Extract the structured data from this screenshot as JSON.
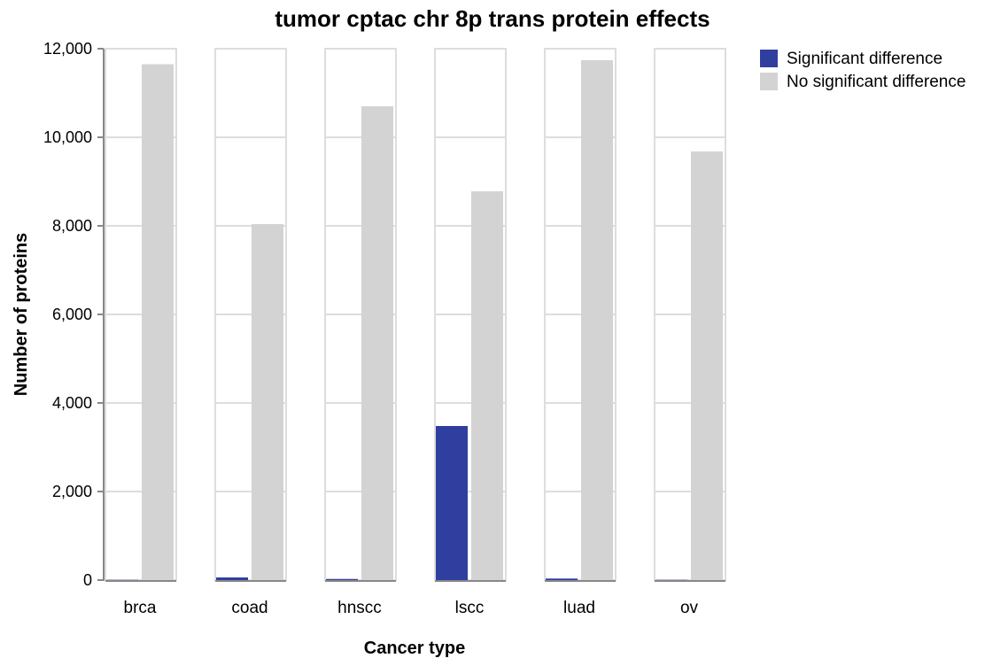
{
  "chart_data": {
    "type": "bar",
    "title": "tumor cptac chr 8p trans protein effects",
    "xlabel": "Cancer type",
    "ylabel": "Number of proteins",
    "categories": [
      "brca",
      "coad",
      "hnscc",
      "lscc",
      "luad",
      "ov"
    ],
    "series": [
      {
        "name": "Significant difference",
        "color": "#303f9f",
        "values": [
          5,
          60,
          25,
          3480,
          35,
          5
        ]
      },
      {
        "name": "No significant difference",
        "color": "#d3d3d3",
        "values": [
          11650,
          8040,
          10700,
          8780,
          11740,
          9680
        ]
      }
    ],
    "ylim": [
      0,
      12000
    ],
    "yticks": [
      0,
      2000,
      4000,
      6000,
      8000,
      10000,
      12000
    ],
    "ytick_labels": [
      "0",
      "2,000",
      "4,000",
      "6,000",
      "8,000",
      "10,000",
      "12,000"
    ],
    "grid": true,
    "legend_position": "top-right"
  }
}
